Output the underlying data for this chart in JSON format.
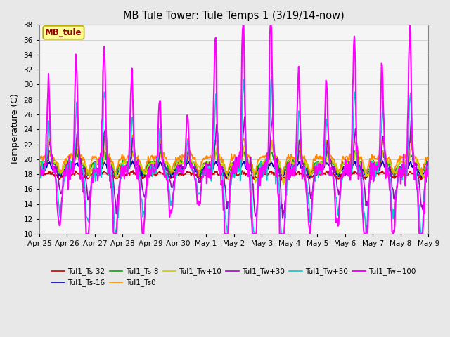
{
  "title": "MB Tule Tower: Tule Temps 1 (3/19/14-now)",
  "ylabel": "Temperature (C)",
  "ylim": [
    10,
    38
  ],
  "yticks": [
    10,
    12,
    14,
    16,
    18,
    20,
    22,
    24,
    26,
    28,
    30,
    32,
    34,
    36,
    38
  ],
  "background_color": "#e8e8e8",
  "plot_bg_color": "#f5f5f5",
  "legend_box_text": "MB_tule",
  "legend_box_color": "#ffff99",
  "legend_box_border": "#bbaa00",
  "series": [
    {
      "label": "Tul1_Ts-32",
      "color": "#cc0000",
      "lw": 1.2
    },
    {
      "label": "Tul1_Ts-16",
      "color": "#0000bb",
      "lw": 1.2
    },
    {
      "label": "Tul1_Ts-8",
      "color": "#00aa00",
      "lw": 1.2
    },
    {
      "label": "Tul1_Ts0",
      "color": "#ff8800",
      "lw": 1.2
    },
    {
      "label": "Tul1_Tw+10",
      "color": "#cccc00",
      "lw": 1.2
    },
    {
      "label": "Tul1_Tw+30",
      "color": "#aa00cc",
      "lw": 1.2
    },
    {
      "label": "Tul1_Tw+50",
      "color": "#00cccc",
      "lw": 1.2
    },
    {
      "label": "Tul1_Tw+100",
      "color": "#ff00ff",
      "lw": 1.5
    }
  ],
  "xtick_labels": [
    "Apr 25",
    "Apr 26",
    "Apr 27",
    "Apr 28",
    "Apr 29",
    "Apr 30",
    "May 1",
    "May 2",
    "May 3",
    "May 4",
    "May 5",
    "May 6",
    "May 7",
    "May 8",
    "May 9"
  ],
  "n_days": 15,
  "pts_per_day": 48
}
